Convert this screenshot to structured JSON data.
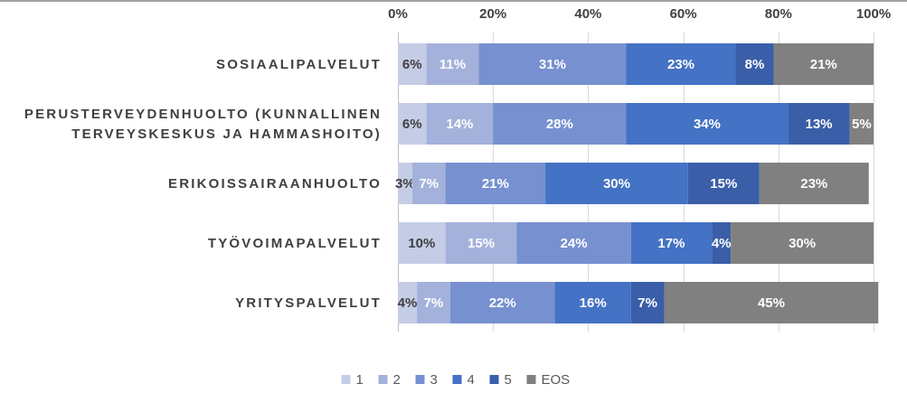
{
  "chart_data": {
    "type": "bar",
    "orientation": "horizontal",
    "stacked": true,
    "title": "",
    "xlabel": "",
    "ylabel": "",
    "xlim": [
      0,
      100
    ],
    "x_ticks": [
      "0%",
      "20%",
      "40%",
      "60%",
      "80%",
      "100%"
    ],
    "x_tick_values": [
      0,
      20,
      40,
      60,
      80,
      100
    ],
    "x_axis_position": "top",
    "grid": true,
    "legend_position": "bottom",
    "categories": [
      [
        "SOSIAALIPALVELUT"
      ],
      [
        "PERUSTERVEYDENHUOLTO (KUNNALLINEN",
        "TERVEYSKESKUS JA HAMMASHOITO)"
      ],
      [
        "ERIKOISSAIRAANHUOLTO"
      ],
      [
        "TYÖVOIMAPALVELUT"
      ],
      [
        "YRITYSPALVELUT"
      ]
    ],
    "series": [
      {
        "name": "1",
        "color": "#c5cde6",
        "label_color": "#404040",
        "values": [
          6,
          6,
          3,
          10,
          4
        ],
        "labels": [
          "6%",
          "6%",
          "3%",
          "10%",
          "4%"
        ]
      },
      {
        "name": "2",
        "color": "#a4b2db",
        "label_color": "#ffffff",
        "values": [
          11,
          14,
          7,
          15,
          7
        ],
        "labels": [
          "11%",
          "14%",
          "7%",
          "15%",
          "7%"
        ]
      },
      {
        "name": "3",
        "color": "#7790d0",
        "label_color": "#ffffff",
        "values": [
          31,
          28,
          21,
          24,
          22
        ],
        "labels": [
          "31%",
          "28%",
          "21%",
          "24%",
          "22%"
        ]
      },
      {
        "name": "4",
        "color": "#4472c4",
        "label_color": "#ffffff",
        "values": [
          23,
          34,
          30,
          17,
          16
        ],
        "labels": [
          "23%",
          "34%",
          "30%",
          "17%",
          "16%"
        ]
      },
      {
        "name": "5",
        "color": "#3a5ea8",
        "label_color": "#ffffff",
        "values": [
          8,
          13,
          15,
          4,
          7
        ],
        "labels": [
          "8%",
          "13%",
          "15%",
          "4%",
          "7%"
        ]
      },
      {
        "name": "EOS",
        "color": "#808080",
        "label_color": "#ffffff",
        "values": [
          21,
          5,
          23,
          30,
          45
        ],
        "labels": [
          "21%",
          "5%",
          "23%",
          "30%",
          "45%"
        ]
      }
    ]
  }
}
